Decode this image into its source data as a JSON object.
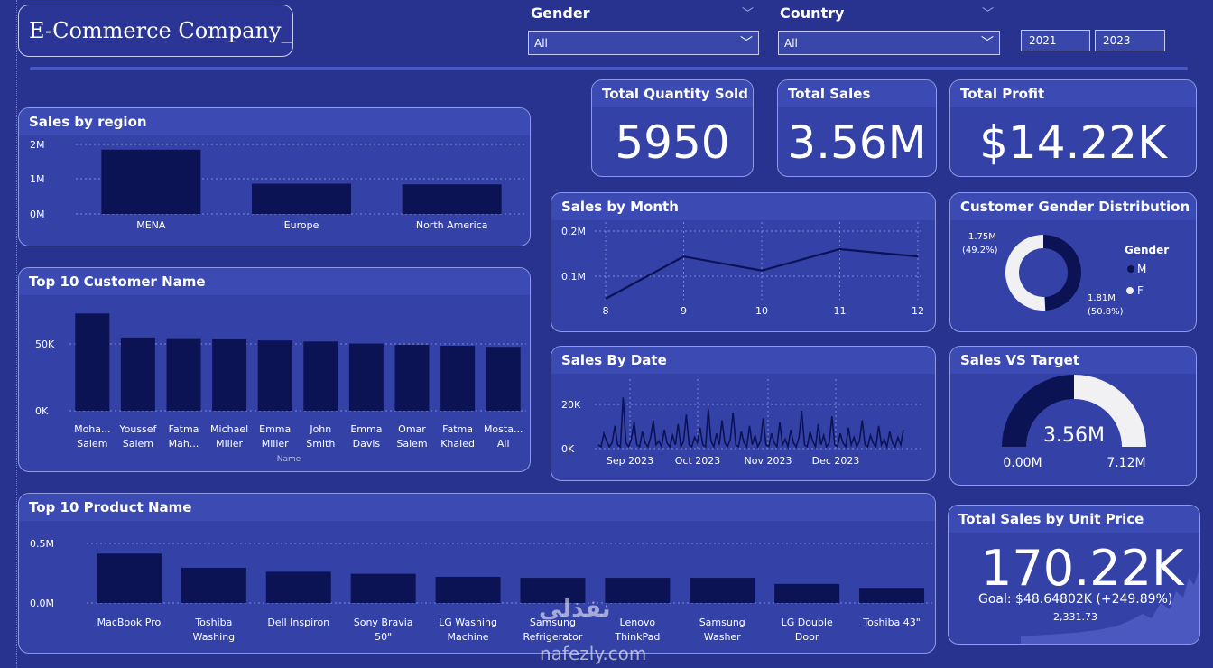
{
  "header": {
    "logo": "E-Commerce Company_",
    "gender_label": "Gender",
    "gender_value": "All",
    "country_label": "Country",
    "country_value": "All",
    "year_start": "2021",
    "year_end": "2023"
  },
  "kpis": {
    "quantity": {
      "title": "Total Quantity Sold",
      "value": "5950"
    },
    "sales": {
      "title": "Total Sales",
      "value": "3.56M"
    },
    "profit": {
      "title": "Total Profit",
      "value": "$14.22K"
    }
  },
  "colors": {
    "bar": "#0b1354",
    "card": "#3442a8",
    "background": "#28338f",
    "female": "#f1f1f4"
  },
  "region": {
    "title": "Sales by region",
    "y_ticks": [
      "2M",
      "1M",
      "0M"
    ],
    "chart_data": {
      "type": "bar",
      "categories": [
        "MENA",
        "Europe",
        "North America"
      ],
      "values": [
        1.85,
        0.87,
        0.85
      ],
      "ylim": [
        0,
        2
      ],
      "grid": true
    }
  },
  "customers": {
    "title": "Top 10 Customer Name",
    "y_ticks": [
      "50K",
      "0K"
    ],
    "xlabel": "Name",
    "labels": [
      [
        "Moha...",
        "Salem"
      ],
      [
        "Youssef",
        "Salem"
      ],
      [
        "Fatma",
        "Mah..."
      ],
      [
        "Michael",
        "Miller"
      ],
      [
        "Emma",
        "Miller"
      ],
      [
        "John",
        "Smith"
      ],
      [
        "Emma",
        "Davis"
      ],
      [
        "Omar",
        "Salem"
      ],
      [
        "Fatma",
        "Khaled"
      ],
      [
        "Mosta...",
        "Ali"
      ]
    ],
    "chart_data": {
      "type": "bar",
      "categories": [
        "Moha... Salem",
        "Youssef Salem",
        "Fatma Mah...",
        "Michael Miller",
        "Emma Miller",
        "John Smith",
        "Emma Davis",
        "Omar Salem",
        "Fatma Khaled",
        "Mosta... Ali"
      ],
      "values": [
        73000,
        55000,
        54500,
        53800,
        52800,
        52000,
        50500,
        49500,
        48800,
        48000
      ],
      "ylim": [
        0,
        80000
      ],
      "grid": true
    }
  },
  "products": {
    "title": "Top 10 Product Name",
    "y_ticks": [
      "0.5M",
      "0.0M"
    ],
    "labels": [
      [
        "MacBook Pro"
      ],
      [
        "Toshiba",
        "Washing"
      ],
      [
        "Dell Inspiron"
      ],
      [
        "Sony Bravia",
        "50\""
      ],
      [
        "LG Washing",
        "Machine"
      ],
      [
        "Samsung",
        "Refrigerator"
      ],
      [
        "Lenovo",
        "ThinkPad"
      ],
      [
        "Samsung",
        "Washer"
      ],
      [
        "LG Double",
        "Door"
      ],
      [
        "Toshiba 43\""
      ]
    ],
    "chart_data": {
      "type": "bar",
      "categories": [
        "MacBook Pro",
        "Toshiba Washing",
        "Dell Inspiron",
        "Sony Bravia 50\"",
        "LG Washing Machine",
        "Samsung Refrigerator",
        "Lenovo ThinkPad",
        "Samsung Washer",
        "LG Double Door",
        "Toshiba 43\""
      ],
      "values": [
        0.49,
        0.35,
        0.31,
        0.29,
        0.26,
        0.25,
        0.25,
        0.25,
        0.19,
        0.15
      ],
      "ylim": [
        0,
        0.6
      ],
      "grid": true
    }
  },
  "month": {
    "title": "Sales by Month",
    "y_ticks": [
      "0.2M",
      "0.1M"
    ],
    "chart_data": {
      "type": "line",
      "x": [
        "8",
        "9",
        "10",
        "11",
        "12"
      ],
      "values": [
        0.08,
        0.155,
        0.13,
        0.168,
        0.155
      ],
      "ylim": [
        0.04,
        0.2
      ],
      "grid": true
    }
  },
  "date": {
    "title": "Sales By Date",
    "y_ticks": [
      "20K",
      "0K"
    ],
    "x_ticks": [
      "Sep 2023",
      "Oct 2023",
      "Nov 2023",
      "Dec 2023"
    ],
    "chart_data": {
      "type": "line",
      "x_range": [
        "Aug 2023",
        "Dec 2023"
      ],
      "values": [
        2,
        1,
        8,
        4,
        1,
        3,
        12,
        2,
        1,
        27,
        3,
        1,
        5,
        14,
        2,
        1,
        9,
        3,
        1,
        6,
        15,
        2,
        4,
        1,
        10,
        3,
        1,
        7,
        2,
        13,
        1,
        4,
        18,
        2,
        1,
        6,
        3,
        11,
        2,
        1,
        21,
        4,
        1,
        8,
        2,
        15,
        3,
        1,
        5,
        19,
        2,
        1,
        9,
        3,
        1,
        12,
        2,
        7,
        1,
        4,
        16,
        2,
        1,
        8,
        3,
        1,
        14,
        2,
        5,
        1,
        10,
        3,
        1,
        6,
        20,
        2,
        1,
        9,
        4,
        1,
        13,
        2,
        7,
        1,
        3,
        17,
        2,
        1,
        8,
        3,
        1,
        11,
        2,
        6,
        1,
        4,
        15,
        2,
        1,
        7,
        3,
        1,
        12,
        2,
        5,
        1,
        9,
        3,
        1,
        6,
        2,
        10
      ],
      "ylim": [
        0,
        30
      ],
      "grid": true
    }
  },
  "gender_dist": {
    "title": "Customer Gender Distribution",
    "legend_title": "Gender",
    "m_label": "M",
    "f_label": "F",
    "m_value": "1.75M",
    "m_pct": "(49.2%)",
    "f_value": "1.81M",
    "f_pct": "(50.8%)",
    "chart_data": {
      "type": "pie",
      "categories": [
        "M",
        "F"
      ],
      "values": [
        1.75,
        1.81
      ]
    }
  },
  "target": {
    "title": "Sales VS Target",
    "value": "3.56M",
    "min": "0.00M",
    "max": "7.12M",
    "chart_data": {
      "type": "gauge",
      "value": 3.56,
      "min": 0,
      "max": 7.12
    }
  },
  "unit_price": {
    "title": "Total Sales by Unit Price",
    "value": "170.22K",
    "goal": "Goal: $48.64802K (+249.89%)",
    "small": "2,331.73"
  },
  "watermark": {
    "arabic": "نفذلي",
    "latin": "nafezly.com"
  }
}
